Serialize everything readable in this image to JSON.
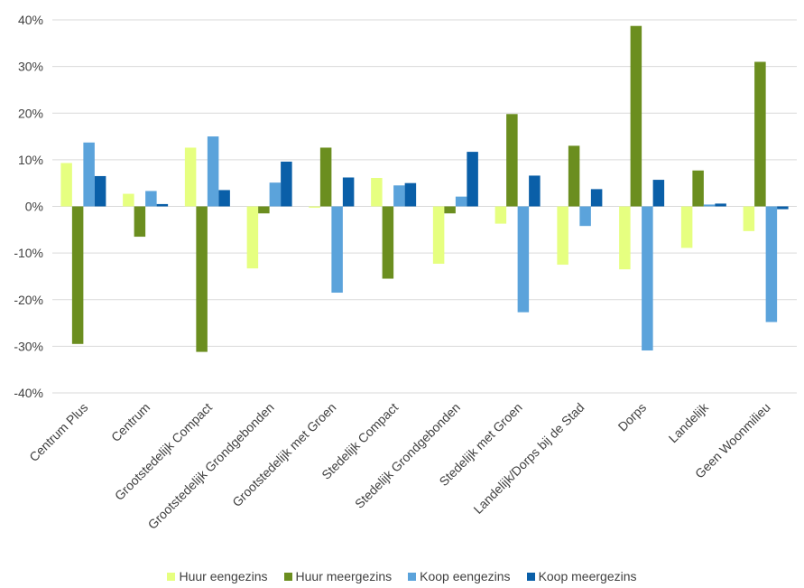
{
  "chart_data": {
    "type": "bar",
    "categories": [
      "Centrum Plus",
      "Centrum",
      "Grootstedelijk Compact",
      "Grootstedelijk Grondgebonden",
      "Grootstedelijk met Groen",
      "Stedelijk Compact",
      "Stedelijk Grondgebonden",
      "Stedelijk met Groen",
      "Landelijk/Dorps bij de Stad",
      "Dorps",
      "Landelijk",
      "Geen Woonmilieu"
    ],
    "series": [
      {
        "name": "Huur eengezins",
        "color": "#e6ff80",
        "values": [
          9.3,
          2.7,
          12.6,
          -13.3,
          -0.3,
          6.1,
          -12.3,
          -3.7,
          -12.5,
          -13.5,
          -8.9,
          -5.3
        ]
      },
      {
        "name": "Huur meergezins",
        "color": "#6b8e1f",
        "values": [
          -29.5,
          -6.5,
          -31.2,
          -1.5,
          12.6,
          -15.5,
          -1.5,
          19.8,
          13.0,
          38.7,
          7.7,
          31.0
        ]
      },
      {
        "name": "Koop eengezins",
        "color": "#5ba3db",
        "values": [
          13.7,
          3.3,
          15.0,
          5.1,
          -18.5,
          4.5,
          2.1,
          -22.7,
          -4.2,
          -30.9,
          0.4,
          -24.8
        ]
      },
      {
        "name": "Koop meergezins",
        "color": "#0a5fa8",
        "values": [
          6.5,
          0.5,
          3.5,
          9.6,
          6.2,
          5.0,
          11.7,
          6.6,
          3.7,
          5.7,
          0.6,
          -0.6
        ]
      }
    ],
    "yticks": [
      "40%",
      "30%",
      "20%",
      "10%",
      "0%",
      "-10%",
      "-20%",
      "-30%",
      "-40%"
    ],
    "ylim": [
      -40,
      40
    ],
    "grid": true,
    "legend_position": "bottom"
  }
}
